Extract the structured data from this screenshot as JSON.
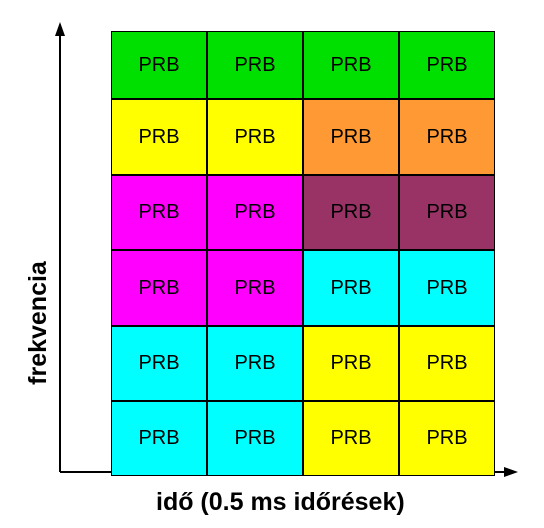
{
  "diagram": {
    "y_axis_label": "frekvencia",
    "x_axis_label": "idő (0.5 ms időrések)",
    "cell_label": "PRB",
    "grid": [
      [
        "#00e000",
        "#00e000",
        "#00e000",
        "#00e000"
      ],
      [
        "#ffff00",
        "#ffff00",
        "#ff9933",
        "#ff9933"
      ],
      [
        "#ff00ff",
        "#ff00ff",
        "#993366",
        "#993366"
      ],
      [
        "#ff00ff",
        "#ff00ff",
        "#00ffff",
        "#00ffff"
      ],
      [
        "#00ffff",
        "#00ffff",
        "#ffff00",
        "#ffff00"
      ],
      [
        "#00ffff",
        "#00ffff",
        "#ffff00",
        "#ffff00"
      ]
    ]
  }
}
